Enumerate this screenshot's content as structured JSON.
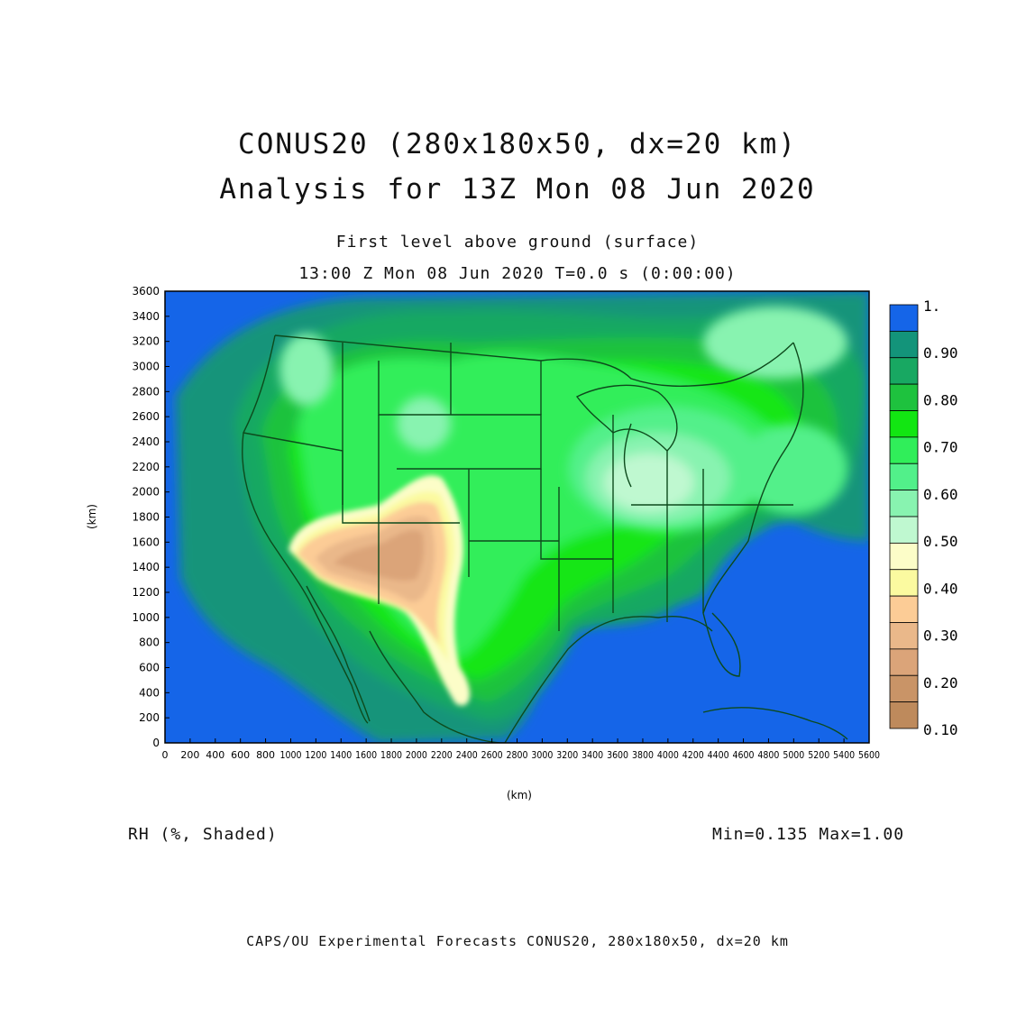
{
  "title": {
    "line1": "CONUS20 (280x180x50, dx=20 km)",
    "line2": "Analysis for 13Z Mon 08 Jun 2020"
  },
  "subtitle": {
    "line1": "First level above ground (surface)",
    "line2": "13:00 Z Mon 08 Jun 2020    T=0.0 s (0:00:00)"
  },
  "field_label": "RH (%, Shaded)",
  "minmax_label": "Min=0.135 Max=1.00",
  "footer": "CAPS/OU Experimental Forecasts  CONUS20, 280x180x50, dx=20 km",
  "map": {
    "x_axis_label": "(km)",
    "y_axis_label": "(km)",
    "x_ticks": [
      0,
      200,
      400,
      600,
      800,
      1000,
      1200,
      1400,
      1600,
      1800,
      2000,
      2200,
      2400,
      2600,
      2800,
      3000,
      3200,
      3400,
      3600,
      3800,
      4000,
      4200,
      4400,
      4600,
      4800,
      5000,
      5200,
      5400,
      5600
    ],
    "y_ticks": [
      0,
      200,
      400,
      600,
      800,
      1000,
      1200,
      1400,
      1600,
      1800,
      2000,
      2200,
      2400,
      2600,
      2800,
      3000,
      3200,
      3400,
      3600
    ],
    "x_range": [
      0,
      5600
    ],
    "y_range": [
      0,
      3600
    ]
  },
  "colorbar": {
    "labels": [
      "1.",
      "0.90",
      "0.80",
      "0.70",
      "0.60",
      "0.50",
      "0.40",
      "0.30",
      "0.20",
      "0.10"
    ],
    "colors": [
      "#1565e8",
      "#13947a",
      "#18a862",
      "#1ec23e",
      "#12e612",
      "#30ee5a",
      "#52f08a",
      "#88f3b0",
      "#bff8d0",
      "#fcfdc8",
      "#fbfaa0",
      "#fccc96",
      "#eab88a",
      "#dba479",
      "#c99467",
      "#be8a5c"
    ]
  }
}
